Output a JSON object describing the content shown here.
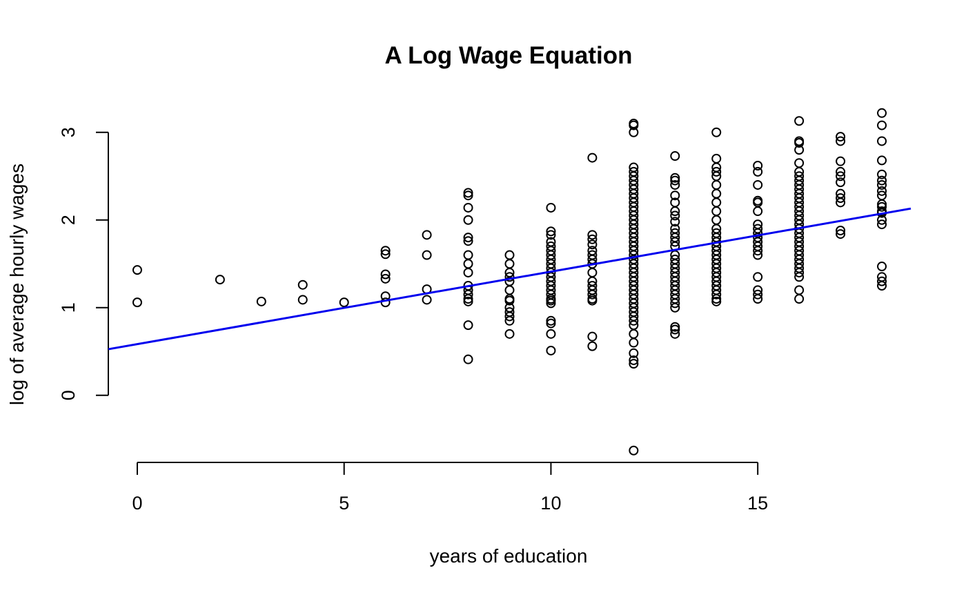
{
  "chart_data": {
    "type": "scatter",
    "title": "A Log Wage Equation",
    "xlabel": "years of education",
    "ylabel": "log of average hourly wages",
    "xlim": [
      -0.7,
      18.7
    ],
    "ylim": [
      -0.75,
      3.25
    ],
    "x_axis": {
      "ticks": [
        0,
        5,
        10,
        15
      ],
      "tick_labels": [
        "0",
        "5",
        "10",
        "15"
      ]
    },
    "y_axis": {
      "ticks": [
        0,
        1,
        2,
        3
      ],
      "tick_labels": [
        "0",
        "1",
        "2",
        "3"
      ]
    },
    "grid": false,
    "legend": "none",
    "series": [
      {
        "kind": "points",
        "marker": "open-circle",
        "color": "#000000",
        "points": [
          [
            0,
            1.43
          ],
          [
            0,
            1.06
          ],
          [
            2,
            1.32
          ],
          [
            3,
            1.07
          ],
          [
            4,
            1.26
          ],
          [
            4,
            1.09
          ],
          [
            5,
            1.06
          ],
          [
            6,
            1.65
          ],
          [
            6,
            1.61
          ],
          [
            6,
            1.38
          ],
          [
            6,
            1.33
          ],
          [
            6,
            1.13
          ],
          [
            6,
            1.06
          ],
          [
            7,
            1.83
          ],
          [
            7,
            1.6
          ],
          [
            7,
            1.21
          ],
          [
            7,
            1.09
          ],
          [
            8,
            2.31
          ],
          [
            8,
            2.28
          ],
          [
            8,
            2.14
          ],
          [
            8,
            2.0
          ],
          [
            8,
            1.8
          ],
          [
            8,
            1.76
          ],
          [
            8,
            1.6
          ],
          [
            8,
            1.5
          ],
          [
            8,
            1.4
          ],
          [
            8,
            1.25
          ],
          [
            8,
            1.2
          ],
          [
            8,
            1.15
          ],
          [
            8,
            1.1
          ],
          [
            8,
            1.07
          ],
          [
            8,
            0.8
          ],
          [
            8,
            0.41
          ],
          [
            9,
            1.6
          ],
          [
            9,
            1.5
          ],
          [
            9,
            1.4
          ],
          [
            9,
            1.35
          ],
          [
            9,
            1.3
          ],
          [
            9,
            1.2
          ],
          [
            9,
            1.1
          ],
          [
            9,
            1.08
          ],
          [
            9,
            1.0
          ],
          [
            9,
            0.95
          ],
          [
            9,
            0.9
          ],
          [
            9,
            0.85
          ],
          [
            9,
            0.7
          ],
          [
            10,
            2.14
          ],
          [
            10,
            1.87
          ],
          [
            10,
            1.83
          ],
          [
            10,
            1.75
          ],
          [
            10,
            1.7
          ],
          [
            10,
            1.65
          ],
          [
            10,
            1.6
          ],
          [
            10,
            1.55
          ],
          [
            10,
            1.5
          ],
          [
            10,
            1.45
          ],
          [
            10,
            1.4
          ],
          [
            10,
            1.35
          ],
          [
            10,
            1.3
          ],
          [
            10,
            1.25
          ],
          [
            10,
            1.2
          ],
          [
            10,
            1.15
          ],
          [
            10,
            1.1
          ],
          [
            10,
            1.08
          ],
          [
            10,
            1.05
          ],
          [
            10,
            0.85
          ],
          [
            10,
            0.82
          ],
          [
            10,
            0.7
          ],
          [
            10,
            0.51
          ],
          [
            11,
            2.71
          ],
          [
            11,
            1.83
          ],
          [
            11,
            1.78
          ],
          [
            11,
            1.72
          ],
          [
            11,
            1.65
          ],
          [
            11,
            1.6
          ],
          [
            11,
            1.55
          ],
          [
            11,
            1.5
          ],
          [
            11,
            1.4
          ],
          [
            11,
            1.3
          ],
          [
            11,
            1.25
          ],
          [
            11,
            1.2
          ],
          [
            11,
            1.15
          ],
          [
            11,
            1.1
          ],
          [
            11,
            1.08
          ],
          [
            11,
            0.67
          ],
          [
            11,
            0.56
          ],
          [
            12,
            3.1
          ],
          [
            12,
            3.08
          ],
          [
            12,
            3.0
          ],
          [
            12,
            2.6
          ],
          [
            12,
            2.55
          ],
          [
            12,
            2.5
          ],
          [
            12,
            2.45
          ],
          [
            12,
            2.4
          ],
          [
            12,
            2.35
          ],
          [
            12,
            2.3
          ],
          [
            12,
            2.25
          ],
          [
            12,
            2.2
          ],
          [
            12,
            2.15
          ],
          [
            12,
            2.1
          ],
          [
            12,
            2.05
          ],
          [
            12,
            2.0
          ],
          [
            12,
            1.95
          ],
          [
            12,
            1.9
          ],
          [
            12,
            1.85
          ],
          [
            12,
            1.8
          ],
          [
            12,
            1.75
          ],
          [
            12,
            1.7
          ],
          [
            12,
            1.65
          ],
          [
            12,
            1.6
          ],
          [
            12,
            1.55
          ],
          [
            12,
            1.5
          ],
          [
            12,
            1.45
          ],
          [
            12,
            1.4
          ],
          [
            12,
            1.35
          ],
          [
            12,
            1.3
          ],
          [
            12,
            1.25
          ],
          [
            12,
            1.2
          ],
          [
            12,
            1.15
          ],
          [
            12,
            1.1
          ],
          [
            12,
            1.05
          ],
          [
            12,
            1.0
          ],
          [
            12,
            0.95
          ],
          [
            12,
            0.9
          ],
          [
            12,
            0.85
          ],
          [
            12,
            0.8
          ],
          [
            12,
            0.7
          ],
          [
            12,
            0.6
          ],
          [
            12,
            0.48
          ],
          [
            12,
            0.4
          ],
          [
            12,
            0.36
          ],
          [
            12,
            -0.63
          ],
          [
            13,
            2.73
          ],
          [
            13,
            2.48
          ],
          [
            13,
            2.45
          ],
          [
            13,
            2.4
          ],
          [
            13,
            2.28
          ],
          [
            13,
            2.2
          ],
          [
            13,
            2.1
          ],
          [
            13,
            2.05
          ],
          [
            13,
            1.98
          ],
          [
            13,
            1.9
          ],
          [
            13,
            1.85
          ],
          [
            13,
            1.8
          ],
          [
            13,
            1.75
          ],
          [
            13,
            1.7
          ],
          [
            13,
            1.6
          ],
          [
            13,
            1.55
          ],
          [
            13,
            1.5
          ],
          [
            13,
            1.45
          ],
          [
            13,
            1.4
          ],
          [
            13,
            1.35
          ],
          [
            13,
            1.3
          ],
          [
            13,
            1.25
          ],
          [
            13,
            1.2
          ],
          [
            13,
            1.15
          ],
          [
            13,
            1.1
          ],
          [
            13,
            1.05
          ],
          [
            13,
            1.0
          ],
          [
            13,
            0.78
          ],
          [
            13,
            0.75
          ],
          [
            13,
            0.7
          ],
          [
            14,
            3.0
          ],
          [
            14,
            2.7
          ],
          [
            14,
            2.6
          ],
          [
            14,
            2.55
          ],
          [
            14,
            2.5
          ],
          [
            14,
            2.4
          ],
          [
            14,
            2.3
          ],
          [
            14,
            2.2
          ],
          [
            14,
            2.1
          ],
          [
            14,
            2.0
          ],
          [
            14,
            1.9
          ],
          [
            14,
            1.85
          ],
          [
            14,
            1.8
          ],
          [
            14,
            1.75
          ],
          [
            14,
            1.7
          ],
          [
            14,
            1.65
          ],
          [
            14,
            1.6
          ],
          [
            14,
            1.55
          ],
          [
            14,
            1.5
          ],
          [
            14,
            1.45
          ],
          [
            14,
            1.4
          ],
          [
            14,
            1.35
          ],
          [
            14,
            1.3
          ],
          [
            14,
            1.25
          ],
          [
            14,
            1.2
          ],
          [
            14,
            1.15
          ],
          [
            14,
            1.1
          ],
          [
            14,
            1.07
          ],
          [
            15,
            2.62
          ],
          [
            15,
            2.55
          ],
          [
            15,
            2.4
          ],
          [
            15,
            2.22
          ],
          [
            15,
            2.2
          ],
          [
            15,
            2.1
          ],
          [
            15,
            1.95
          ],
          [
            15,
            1.9
          ],
          [
            15,
            1.85
          ],
          [
            15,
            1.8
          ],
          [
            15,
            1.75
          ],
          [
            15,
            1.7
          ],
          [
            15,
            1.65
          ],
          [
            15,
            1.6
          ],
          [
            15,
            1.35
          ],
          [
            15,
            1.2
          ],
          [
            15,
            1.15
          ],
          [
            15,
            1.1
          ],
          [
            16,
            3.13
          ],
          [
            16,
            2.9
          ],
          [
            16,
            2.88
          ],
          [
            16,
            2.8
          ],
          [
            16,
            2.65
          ],
          [
            16,
            2.55
          ],
          [
            16,
            2.5
          ],
          [
            16,
            2.45
          ],
          [
            16,
            2.4
          ],
          [
            16,
            2.35
          ],
          [
            16,
            2.3
          ],
          [
            16,
            2.25
          ],
          [
            16,
            2.2
          ],
          [
            16,
            2.15
          ],
          [
            16,
            2.1
          ],
          [
            16,
            2.05
          ],
          [
            16,
            2.0
          ],
          [
            16,
            1.95
          ],
          [
            16,
            1.9
          ],
          [
            16,
            1.85
          ],
          [
            16,
            1.8
          ],
          [
            16,
            1.75
          ],
          [
            16,
            1.7
          ],
          [
            16,
            1.65
          ],
          [
            16,
            1.6
          ],
          [
            16,
            1.55
          ],
          [
            16,
            1.5
          ],
          [
            16,
            1.45
          ],
          [
            16,
            1.4
          ],
          [
            16,
            1.35
          ],
          [
            16,
            1.2
          ],
          [
            16,
            1.1
          ],
          [
            17,
            2.95
          ],
          [
            17,
            2.9
          ],
          [
            17,
            2.67
          ],
          [
            17,
            2.55
          ],
          [
            17,
            2.5
          ],
          [
            17,
            2.43
          ],
          [
            17,
            2.3
          ],
          [
            17,
            2.25
          ],
          [
            17,
            2.2
          ],
          [
            17,
            1.88
          ],
          [
            17,
            1.84
          ],
          [
            18,
            3.22
          ],
          [
            18,
            3.08
          ],
          [
            18,
            2.9
          ],
          [
            18,
            2.68
          ],
          [
            18,
            2.52
          ],
          [
            18,
            2.45
          ],
          [
            18,
            2.4
          ],
          [
            18,
            2.33
          ],
          [
            18,
            2.28
          ],
          [
            18,
            2.18
          ],
          [
            18,
            2.15
          ],
          [
            18,
            2.1
          ],
          [
            18,
            2.08
          ],
          [
            18,
            2.0
          ],
          [
            18,
            1.95
          ],
          [
            18,
            1.47
          ],
          [
            18,
            1.35
          ],
          [
            18,
            1.3
          ],
          [
            18,
            1.25
          ]
        ]
      },
      {
        "kind": "regression-line",
        "color": "#0000ee",
        "intercept": 0.5838,
        "slope": 0.0827
      }
    ]
  }
}
